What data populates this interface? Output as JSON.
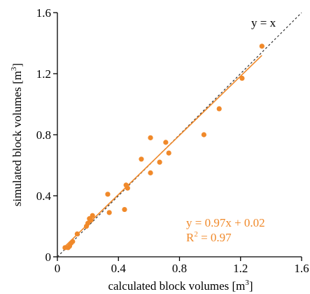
{
  "chart_data": {
    "type": "scatter",
    "xlabel": "calculated block volumes [m",
    "xlabel_sup": "3",
    "xlabel_close": "]",
    "ylabel": "simulated block volumes [m",
    "ylabel_sup": "3",
    "ylabel_close": "]",
    "xlim": [
      0,
      1.6
    ],
    "ylim": [
      0,
      1.6
    ],
    "x_ticks": [
      "0",
      "0.4",
      "0.8",
      "1.2",
      "1.6"
    ],
    "y_ticks": [
      "0",
      "0.4",
      "0.8",
      "1.2",
      "1.6"
    ],
    "grid": false,
    "colors": {
      "points": "#f0892a",
      "fit": "#f0892a",
      "identity": "#333333",
      "axes": "#000000"
    },
    "identity_line": {
      "label": "y = x",
      "slope": 1,
      "intercept": 0
    },
    "fit_line": {
      "equation": "y = 0.97x + 0.02",
      "r2_prefix": "R",
      "r2_sup": "2",
      "r2_value": " = 0.97",
      "slope": 0.97,
      "intercept": 0.02,
      "x_range": [
        0.05,
        1.34
      ]
    },
    "series": [
      {
        "points": [
          [
            0.05,
            0.06
          ],
          [
            0.07,
            0.06
          ],
          [
            0.08,
            0.07
          ],
          [
            0.09,
            0.09
          ],
          [
            0.1,
            0.1
          ],
          [
            0.13,
            0.15
          ],
          [
            0.19,
            0.2
          ],
          [
            0.2,
            0.22
          ],
          [
            0.21,
            0.25
          ],
          [
            0.22,
            0.24
          ],
          [
            0.23,
            0.27
          ],
          [
            0.33,
            0.41
          ],
          [
            0.34,
            0.29
          ],
          [
            0.44,
            0.31
          ],
          [
            0.45,
            0.47
          ],
          [
            0.46,
            0.45
          ],
          [
            0.55,
            0.64
          ],
          [
            0.61,
            0.55
          ],
          [
            0.61,
            0.78
          ],
          [
            0.67,
            0.62
          ],
          [
            0.71,
            0.75
          ],
          [
            0.73,
            0.68
          ],
          [
            0.96,
            0.8
          ],
          [
            1.06,
            0.97
          ],
          [
            1.21,
            1.17
          ],
          [
            1.34,
            1.38
          ]
        ]
      }
    ]
  }
}
